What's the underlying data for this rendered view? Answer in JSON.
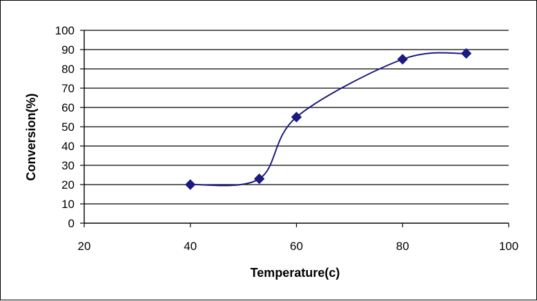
{
  "chart_data": {
    "type": "scatter",
    "title": "",
    "xlabel": "Temperature(c)",
    "ylabel": "Conversion(%)",
    "xlim": [
      20,
      100
    ],
    "ylim": [
      0,
      100
    ],
    "x_ticks": [
      20,
      40,
      60,
      80,
      100
    ],
    "y_ticks": [
      0,
      10,
      20,
      30,
      40,
      50,
      60,
      70,
      80,
      90,
      100
    ],
    "grid": "horizontal",
    "legend": "none",
    "line_style": "smoothed",
    "colors": {
      "series": "#1a1a80",
      "grid": "#000000",
      "frame": "#000000"
    },
    "series": [
      {
        "name": "",
        "x": [
          40,
          53,
          60,
          80,
          92
        ],
        "y": [
          20,
          23,
          55,
          85,
          88
        ]
      }
    ]
  }
}
